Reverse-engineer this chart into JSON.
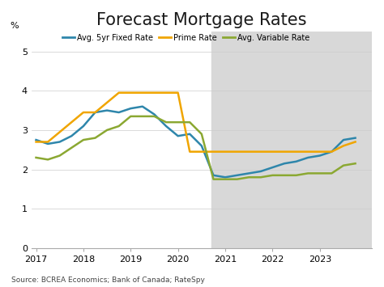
{
  "title": "Forecast Mortgage Rates",
  "ylabel": "%",
  "source": "Source: BCREA Economics; Bank of Canada; RateSpy",
  "ylim": [
    0,
    5.5
  ],
  "yticks": [
    0,
    1,
    2,
    3,
    4,
    5
  ],
  "xlim": [
    2016.9,
    2024.1
  ],
  "xticks": [
    2017,
    2018,
    2019,
    2020,
    2021,
    2022,
    2023
  ],
  "forecast_start": 2020.7,
  "forecast_end": 2024.1,
  "background_color": "#ffffff",
  "forecast_bg_color": "#d8d8d8",
  "avg_5yr_fixed": {
    "label": "Avg. 5yr Fixed Rate",
    "color": "#2e86ab",
    "x": [
      2017.0,
      2017.25,
      2017.5,
      2017.75,
      2018.0,
      2018.25,
      2018.5,
      2018.75,
      2019.0,
      2019.25,
      2019.5,
      2019.75,
      2020.0,
      2020.25,
      2020.5,
      2020.75,
      2021.0,
      2021.25,
      2021.5,
      2021.75,
      2022.0,
      2022.25,
      2022.5,
      2022.75,
      2023.0,
      2023.25,
      2023.5,
      2023.75
    ],
    "y": [
      2.75,
      2.65,
      2.7,
      2.85,
      3.1,
      3.45,
      3.5,
      3.45,
      3.55,
      3.6,
      3.4,
      3.1,
      2.85,
      2.9,
      2.6,
      1.85,
      1.8,
      1.85,
      1.9,
      1.95,
      2.05,
      2.15,
      2.2,
      2.3,
      2.35,
      2.45,
      2.75,
      2.8
    ]
  },
  "prime_rate": {
    "label": "Prime Rate",
    "color": "#f0a500",
    "x": [
      2017.0,
      2017.25,
      2017.5,
      2017.75,
      2018.0,
      2018.25,
      2018.5,
      2018.75,
      2019.0,
      2019.25,
      2019.5,
      2019.75,
      2020.0,
      2020.25,
      2020.5,
      2020.75,
      2021.0,
      2021.25,
      2021.5,
      2021.75,
      2022.0,
      2022.25,
      2022.5,
      2022.75,
      2023.0,
      2023.25,
      2023.5,
      2023.75
    ],
    "y": [
      2.7,
      2.7,
      2.95,
      3.2,
      3.45,
      3.45,
      3.7,
      3.95,
      3.95,
      3.95,
      3.95,
      3.95,
      3.95,
      2.45,
      2.45,
      2.45,
      2.45,
      2.45,
      2.45,
      2.45,
      2.45,
      2.45,
      2.45,
      2.45,
      2.45,
      2.45,
      2.6,
      2.7
    ]
  },
  "avg_variable": {
    "label": "Avg. Variable Rate",
    "color": "#8ba832",
    "x": [
      2017.0,
      2017.25,
      2017.5,
      2017.75,
      2018.0,
      2018.25,
      2018.5,
      2018.75,
      2019.0,
      2019.25,
      2019.5,
      2019.75,
      2020.0,
      2020.25,
      2020.5,
      2020.75,
      2021.0,
      2021.25,
      2021.5,
      2021.75,
      2022.0,
      2022.25,
      2022.5,
      2022.75,
      2023.0,
      2023.25,
      2023.5,
      2023.75
    ],
    "y": [
      2.3,
      2.25,
      2.35,
      2.55,
      2.75,
      2.8,
      3.0,
      3.1,
      3.35,
      3.35,
      3.35,
      3.2,
      3.2,
      3.2,
      2.9,
      1.75,
      1.75,
      1.75,
      1.8,
      1.8,
      1.85,
      1.85,
      1.85,
      1.9,
      1.9,
      1.9,
      2.1,
      2.15
    ]
  }
}
